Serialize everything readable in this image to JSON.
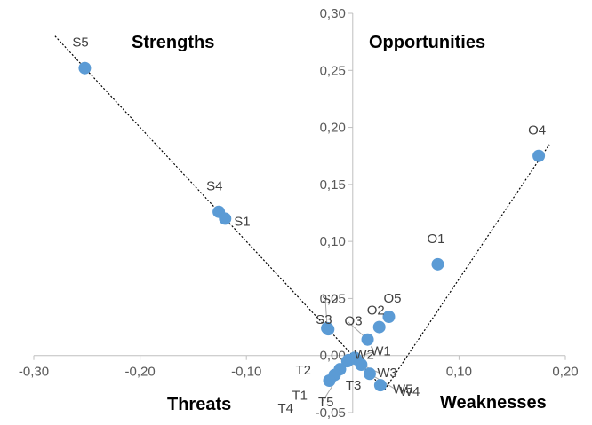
{
  "chart_data": {
    "type": "scatter",
    "title": "",
    "xlabel": "",
    "ylabel": "",
    "xlim": [
      -0.3,
      0.2
    ],
    "ylim": [
      -0.05,
      0.3
    ],
    "x_ticks": [
      {
        "value": -0.3,
        "label": "-0,30"
      },
      {
        "value": -0.2,
        "label": "-0,20"
      },
      {
        "value": -0.1,
        "label": "-0,10"
      },
      {
        "value": 0.1,
        "label": "0,10"
      },
      {
        "value": 0.2,
        "label": "0,20"
      }
    ],
    "y_ticks": [
      {
        "value": 0.3,
        "label": "0,30"
      },
      {
        "value": 0.25,
        "label": "0,25"
      },
      {
        "value": 0.2,
        "label": "0,20"
      },
      {
        "value": 0.15,
        "label": "0,15"
      },
      {
        "value": 0.1,
        "label": "0,10"
      },
      {
        "value": 0.05,
        "label": "0,05"
      },
      {
        "value": 0.0,
        "label": "0,00"
      },
      {
        "value": -0.05,
        "label": "-0,05"
      }
    ],
    "quadrant_labels": {
      "top_left": "Strengths",
      "top_right": "Opportunities",
      "bottom_left": "Threats",
      "bottom_right": "Weaknesses"
    },
    "grid": false,
    "marker_color": "#5B9BD5",
    "points": [
      {
        "label": "S5",
        "x": -0.252,
        "y": 0.252
      },
      {
        "label": "S4",
        "x": -0.126,
        "y": 0.126
      },
      {
        "label": "S1",
        "x": -0.12,
        "y": 0.12
      },
      {
        "label": "S2",
        "x": -0.024,
        "y": 0.024
      },
      {
        "label": "S3",
        "x": -0.023,
        "y": 0.023
      },
      {
        "label": "O4",
        "x": 0.175,
        "y": 0.175
      },
      {
        "label": "O1",
        "x": 0.08,
        "y": 0.08
      },
      {
        "label": "O5",
        "x": 0.034,
        "y": 0.034
      },
      {
        "label": "O2",
        "x": 0.025,
        "y": 0.025
      },
      {
        "label": "O3",
        "x": 0.014,
        "y": 0.014
      },
      {
        "label": "W1",
        "x": 0.002,
        "y": -0.002
      },
      {
        "label": "W2",
        "x": 0.003,
        "y": -0.003
      },
      {
        "label": "W3",
        "x": 0.008,
        "y": -0.008
      },
      {
        "label": "W5",
        "x": 0.016,
        "y": -0.016
      },
      {
        "label": "W4",
        "x": 0.026,
        "y": -0.026
      },
      {
        "label": "T3",
        "x": -0.005,
        "y": -0.005
      },
      {
        "label": "T2",
        "x": -0.012,
        "y": -0.012
      },
      {
        "label": "T1",
        "x": -0.017,
        "y": -0.017
      },
      {
        "label": "T4",
        "x": -0.022,
        "y": -0.022
      },
      {
        "label": "T5",
        "x": -0.004,
        "y": -0.004
      }
    ],
    "trendlines": [
      {
        "name": "",
        "style": "dotted",
        "from": [
          -0.28,
          0.28
        ],
        "to": [
          0.025,
          -0.025
        ]
      },
      {
        "name": "",
        "style": "dotted",
        "from": [
          0.03,
          -0.03
        ],
        "to": [
          0.185,
          0.185
        ]
      }
    ]
  }
}
